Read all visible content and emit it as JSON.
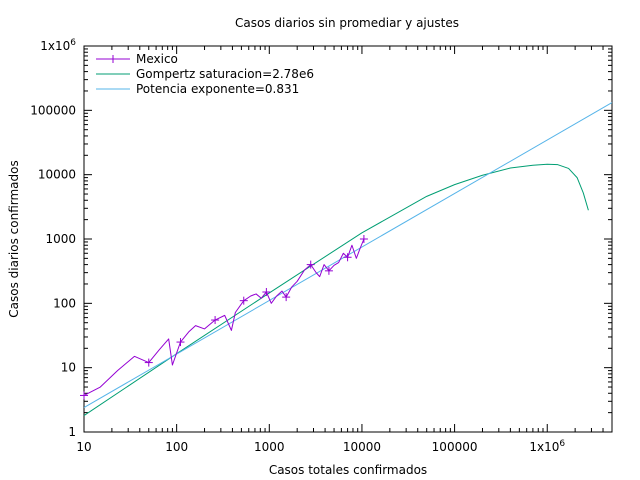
{
  "chart_data": {
    "type": "line",
    "title": "Casos diarios sin promediar y ajustes",
    "xlabel": "Casos totales confirmados",
    "ylabel": "Casos diarios confirmados",
    "xscale": "log",
    "yscale": "log",
    "xlim": [
      10,
      5000000
    ],
    "ylim": [
      1,
      1000000
    ],
    "grid": false,
    "legend_position": "top-left",
    "x_ticks": [
      {
        "value": 10,
        "label": "10"
      },
      {
        "value": 100,
        "label": "100"
      },
      {
        "value": 1000,
        "label": "1000"
      },
      {
        "value": 10000,
        "label": "10000"
      },
      {
        "value": 100000,
        "label": "100000"
      },
      {
        "value": 1000000,
        "label": "1x10",
        "sup": "6"
      }
    ],
    "y_ticks": [
      {
        "value": 1,
        "label": "1"
      },
      {
        "value": 10,
        "label": "10"
      },
      {
        "value": 100,
        "label": "100"
      },
      {
        "value": 1000,
        "label": "1000"
      },
      {
        "value": 10000,
        "label": "10000"
      },
      {
        "value": 100000,
        "label": "100000"
      },
      {
        "value": 1000000,
        "label": "1x10",
        "sup": "6"
      }
    ],
    "series": [
      {
        "name": "Mexico",
        "color": "#9400d3",
        "style": "line-points",
        "marker": "plus",
        "x": [
          10,
          15,
          23,
          35,
          50,
          65,
          82,
          90,
          110,
          135,
          160,
          200,
          260,
          330,
          390,
          430,
          530,
          630,
          720,
          820,
          930,
          1050,
          1200,
          1370,
          1520,
          1750,
          2000,
          2400,
          2800,
          3200,
          3500,
          3900,
          4400,
          5000,
          5600,
          6300,
          7000,
          7800,
          8700,
          9500,
          10500
        ],
        "y": [
          3.7,
          5,
          9,
          15,
          12,
          19,
          28,
          11,
          25,
          36,
          45,
          40,
          55,
          65,
          38,
          72,
          110,
          130,
          140,
          120,
          150,
          100,
          130,
          155,
          125,
          180,
          220,
          330,
          400,
          300,
          260,
          400,
          320,
          390,
          430,
          600,
          520,
          800,
          500,
          700,
          1000
        ]
      },
      {
        "name": "Gompertz saturacion=2.78e6",
        "color": "#009e73",
        "style": "line",
        "x": [
          10,
          100,
          1000,
          10000,
          50000,
          100000,
          200000,
          400000,
          700000,
          1000000,
          1300000,
          1700000,
          2100000,
          2450000,
          2780000
        ],
        "y": [
          1.8,
          16.5,
          145,
          1250,
          4600,
          7000,
          9800,
          12700,
          14000,
          14500,
          14300,
          12500,
          9000,
          5200,
          2800
        ]
      },
      {
        "name": "Potencia exponente=0.831",
        "color": "#56b4e9",
        "style": "line",
        "x": [
          10,
          5000000
        ],
        "y": [
          2.4,
          132000
        ]
      }
    ]
  }
}
